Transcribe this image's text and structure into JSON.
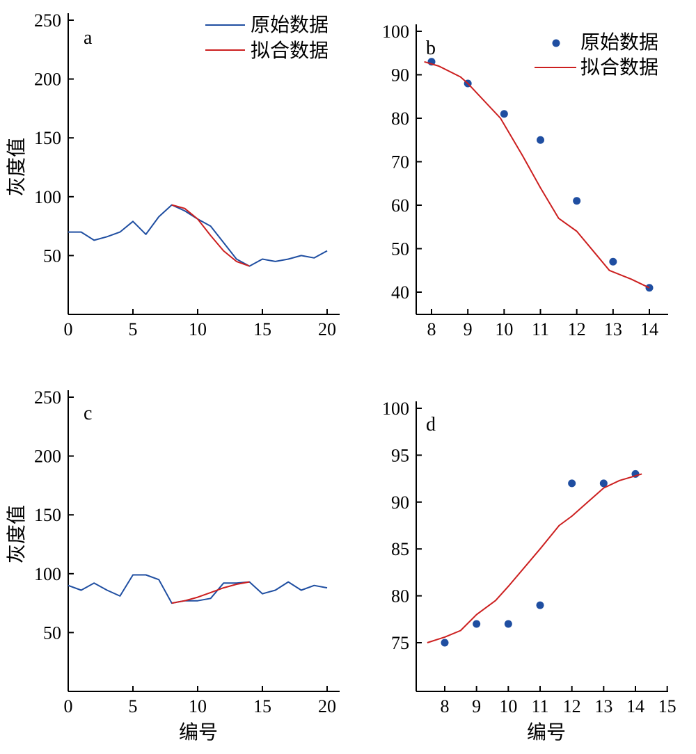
{
  "chart_data": [
    {
      "id": "a",
      "type": "line",
      "panel_label": "a",
      "ylabel": "灰度值",
      "xlabel": "",
      "xlim": [
        0,
        20
      ],
      "ylim": [
        0,
        250
      ],
      "xticks": [
        0,
        5,
        10,
        15,
        20
      ],
      "yticks": [
        50,
        100,
        150,
        200,
        250
      ],
      "legend": "top-right",
      "series": [
        {
          "name": "原始数据",
          "style": "line",
          "color": "#1f4ea1",
          "x": [
            0,
            1,
            2,
            3,
            4,
            5,
            6,
            7,
            8,
            9,
            10,
            11,
            12,
            13,
            14,
            15,
            16,
            17,
            18,
            19,
            20
          ],
          "y": [
            70,
            70,
            63,
            66,
            70,
            79,
            68,
            83,
            93,
            88,
            81,
            75,
            61,
            47,
            41,
            47,
            45,
            47,
            50,
            48,
            54
          ]
        },
        {
          "name": "拟合数据",
          "style": "line",
          "color": "#cc1f1f",
          "x": [
            8,
            9,
            10,
            11,
            12,
            13,
            14
          ],
          "y": [
            93,
            90,
            81,
            67,
            54,
            45,
            41
          ]
        }
      ]
    },
    {
      "id": "b",
      "type": "scatter",
      "panel_label": "b",
      "ylabel": "",
      "xlabel": "",
      "xlim": [
        7.75,
        14.5
      ],
      "ylim": [
        35,
        100
      ],
      "xticks": [
        8,
        9,
        10,
        11,
        12,
        13,
        14
      ],
      "yticks": [
        40,
        50,
        60,
        70,
        80,
        90,
        100
      ],
      "legend": "top-right",
      "series": [
        {
          "name": "原始数据",
          "style": "points",
          "color": "#1f4ea1",
          "x": [
            8,
            9,
            10,
            11,
            12,
            13,
            14
          ],
          "y": [
            93,
            88,
            81,
            75,
            61,
            47,
            41
          ]
        },
        {
          "name": "拟合数据",
          "style": "line",
          "color": "#cc1f1f",
          "x": [
            7.8,
            8.2,
            8.8,
            9,
            9.9,
            10.5,
            11,
            11.5,
            12,
            12.5,
            12.9,
            13.5,
            14
          ],
          "y": [
            93,
            92,
            89.5,
            88,
            80,
            71.5,
            64,
            57,
            54,
            49,
            45,
            43,
            41
          ]
        }
      ]
    },
    {
      "id": "c",
      "type": "line",
      "panel_label": "c",
      "ylabel": "灰度值",
      "xlabel": "编号",
      "xlim": [
        0,
        20
      ],
      "ylim": [
        0,
        250
      ],
      "xticks": [
        0,
        5,
        10,
        15,
        20
      ],
      "yticks": [
        50,
        100,
        150,
        200,
        250
      ],
      "legend": "none",
      "series": [
        {
          "name": "",
          "style": "line",
          "color": "#1f4ea1",
          "x": [
            0,
            1,
            2,
            3,
            4,
            5,
            6,
            7,
            8,
            9,
            10,
            11,
            12,
            13,
            14,
            15,
            16,
            17,
            18,
            19,
            20
          ],
          "y": [
            90,
            86,
            92,
            86,
            81,
            99,
            99,
            95,
            75,
            77,
            77,
            79,
            92,
            92,
            93,
            83,
            86,
            93,
            86,
            90,
            88
          ]
        },
        {
          "name": "",
          "style": "line",
          "color": "#cc1f1f",
          "x": [
            8,
            9,
            10,
            11,
            12,
            13,
            14
          ],
          "y": [
            75,
            77,
            80,
            84,
            88,
            91,
            93
          ]
        }
      ]
    },
    {
      "id": "d",
      "type": "scatter",
      "panel_label": "d",
      "ylabel": "",
      "xlabel": "编号",
      "xlim": [
        7.15,
        15
      ],
      "ylim": [
        70,
        100
      ],
      "xticks": [
        8,
        9,
        10,
        11,
        12,
        13,
        14,
        15
      ],
      "yticks": [
        75,
        80,
        85,
        90,
        95,
        100
      ],
      "legend": "none",
      "series": [
        {
          "name": "",
          "style": "points",
          "color": "#1f4ea1",
          "x": [
            8,
            9,
            10,
            11,
            12,
            13,
            14
          ],
          "y": [
            75,
            77,
            77,
            79,
            92,
            92,
            93
          ]
        },
        {
          "name": "",
          "style": "line",
          "color": "#cc1f1f",
          "x": [
            7.45,
            8,
            8.5,
            9,
            9.6,
            10,
            11,
            11.6,
            12,
            12.5,
            13,
            13.5,
            14.2
          ],
          "y": [
            75,
            75.6,
            76.3,
            78,
            79.5,
            81,
            85,
            87.5,
            88.5,
            90,
            91.5,
            92.3,
            93
          ]
        }
      ]
    }
  ]
}
